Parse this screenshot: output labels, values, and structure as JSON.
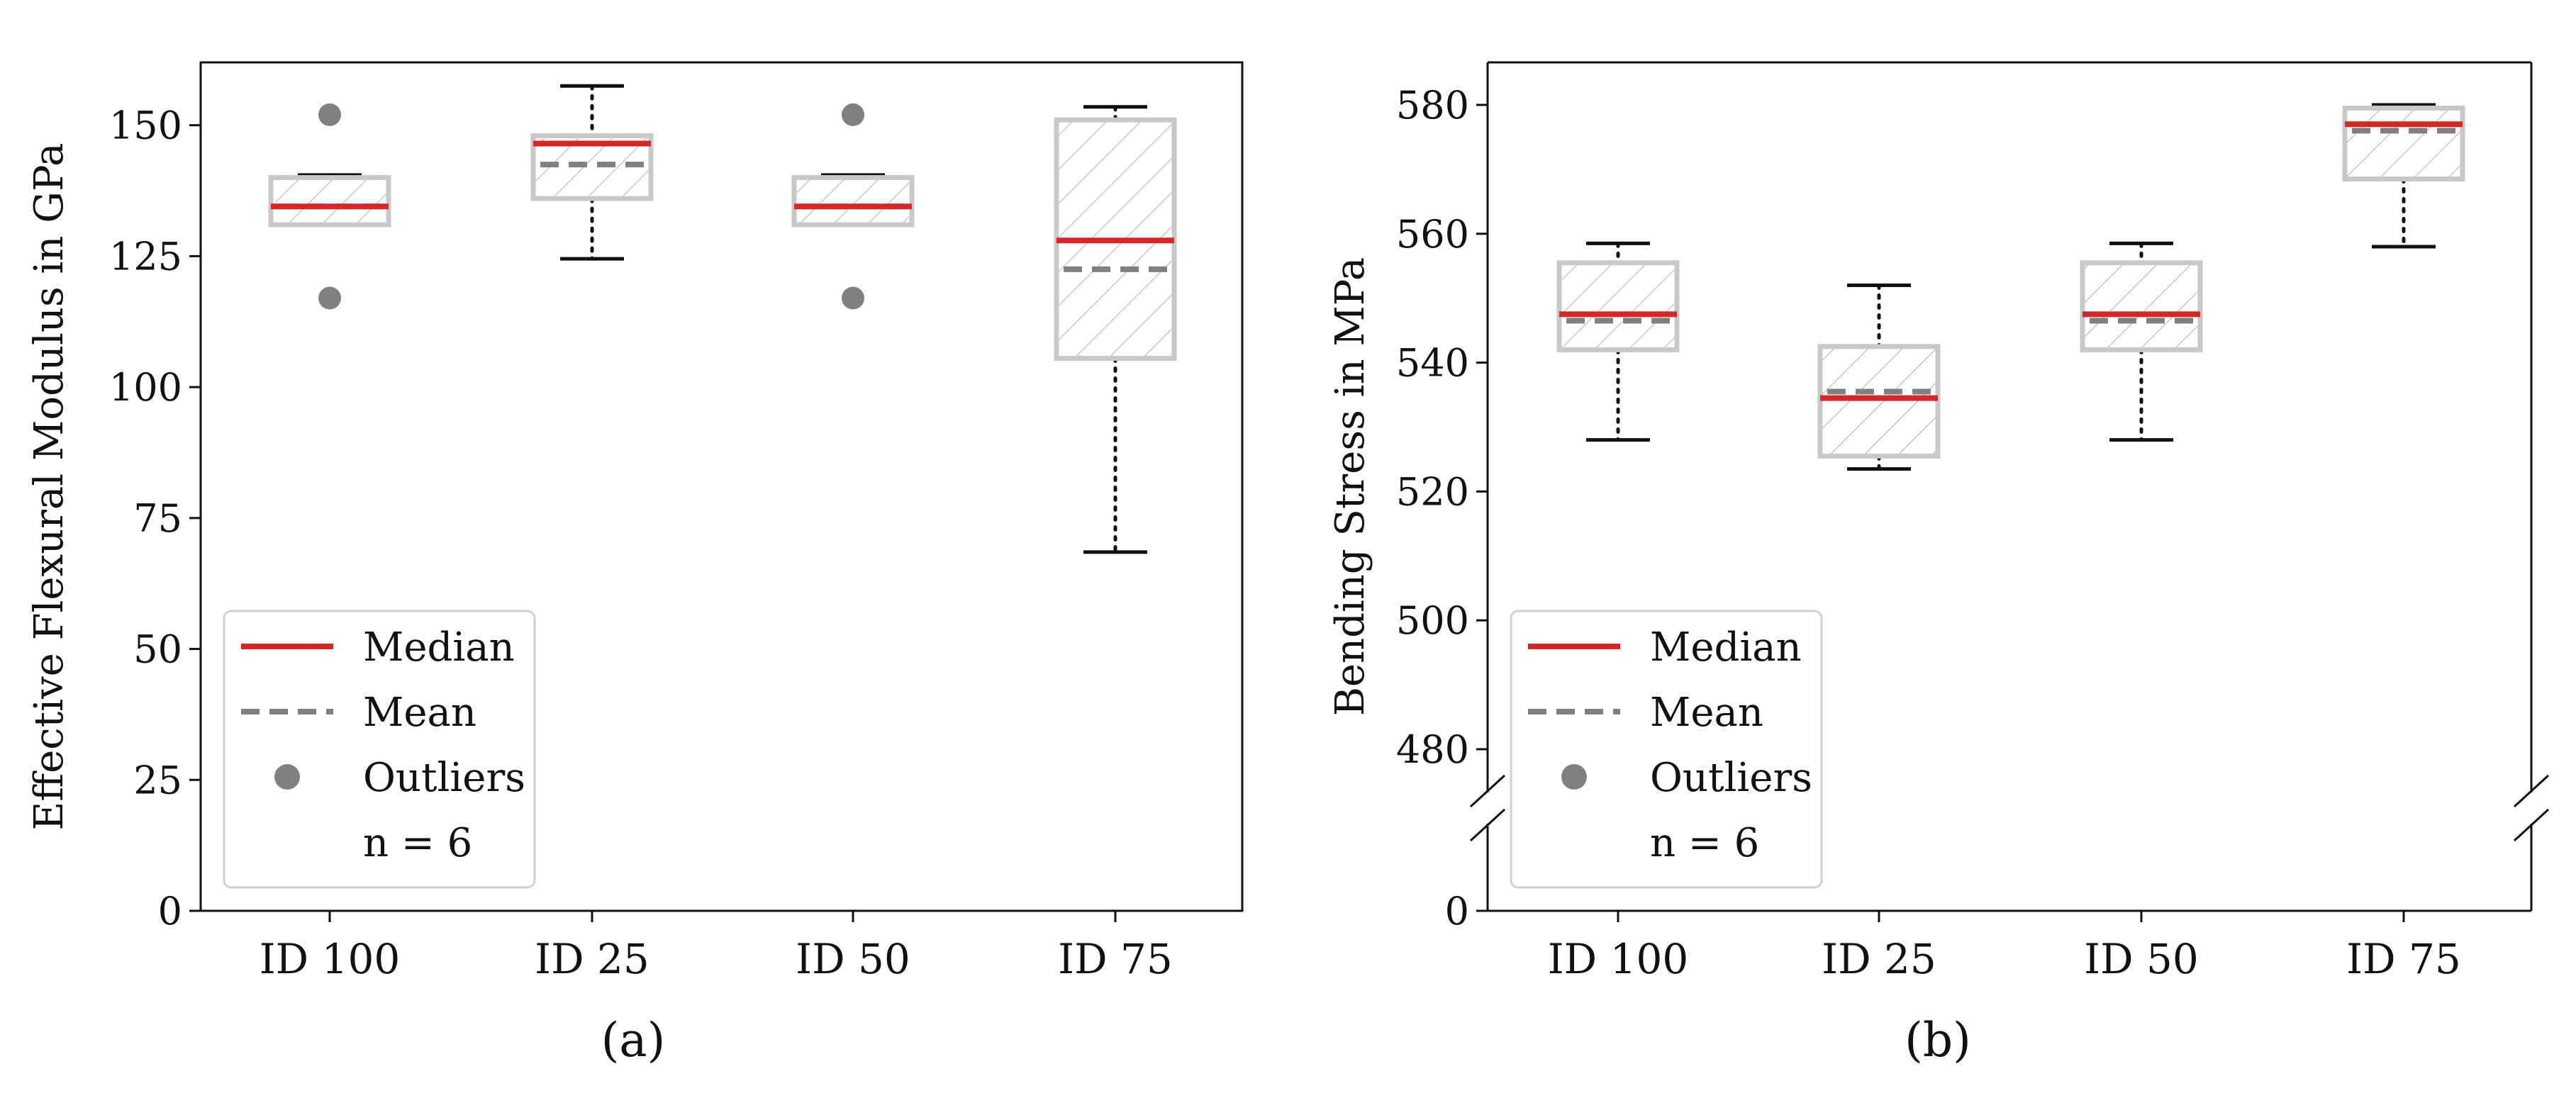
{
  "colors": {
    "median": "#d62728",
    "mean": "#808080",
    "box": "#c8c8c8",
    "hatch": "#c8c8c8",
    "outlier": "#808080",
    "whisker": "#111111",
    "axis": "#111111"
  },
  "chart_data": [
    {
      "type": "box",
      "panel_label": "(a)",
      "ylabel": "Effective Flexural Modulus in GPa",
      "ylim": [
        0,
        162
      ],
      "yticks": [
        0,
        25,
        50,
        75,
        100,
        125,
        150
      ],
      "categories": [
        "ID 100",
        "ID 25",
        "ID 50",
        "ID 75"
      ],
      "boxes": [
        {
          "label": "ID 100",
          "whisker_low": 131,
          "q1": 131,
          "median": 134.5,
          "mean": 134.5,
          "q3": 140,
          "whisker_high": 140.5,
          "outliers": [
            152,
            117
          ]
        },
        {
          "label": "ID 25",
          "whisker_low": 124.5,
          "q1": 136,
          "median": 146.5,
          "mean": 142.5,
          "q3": 148,
          "whisker_high": 157.5,
          "outliers": []
        },
        {
          "label": "ID 50",
          "whisker_low": 131,
          "q1": 131,
          "median": 134.5,
          "mean": 134.5,
          "q3": 140,
          "whisker_high": 140.5,
          "outliers": [
            152,
            117
          ]
        },
        {
          "label": "ID 75",
          "whisker_low": 68.5,
          "q1": 105.5,
          "median": 128,
          "mean": 122.5,
          "q3": 151,
          "whisker_high": 153.5,
          "outliers": []
        }
      ],
      "legend": {
        "position": "lower-left",
        "entries": [
          {
            "kind": "median",
            "label": "Median"
          },
          {
            "kind": "mean",
            "label": "Mean"
          },
          {
            "kind": "outlier",
            "label": "Outliers"
          },
          {
            "kind": "text",
            "label": "n = 6"
          }
        ]
      },
      "grid": false
    },
    {
      "type": "box",
      "panel_label": "(b)",
      "ylabel": "Bending Stress in MPa",
      "ylim": [
        0,
        586
      ],
      "axis_break": true,
      "yticks": [
        0,
        480,
        500,
        520,
        540,
        560,
        580
      ],
      "categories": [
        "ID 100",
        "ID 25",
        "ID 50",
        "ID 75"
      ],
      "boxes": [
        {
          "label": "ID 100",
          "whisker_low": 528,
          "q1": 542,
          "median": 547.5,
          "mean": 546.5,
          "q3": 555.5,
          "whisker_high": 558.5,
          "outliers": []
        },
        {
          "label": "ID 25",
          "whisker_low": 523.5,
          "q1": 525.5,
          "median": 534.5,
          "mean": 535.5,
          "q3": 542.5,
          "whisker_high": 552,
          "outliers": []
        },
        {
          "label": "ID 50",
          "whisker_low": 528,
          "q1": 542,
          "median": 547.5,
          "mean": 546.5,
          "q3": 555.5,
          "whisker_high": 558.5,
          "outliers": []
        },
        {
          "label": "ID 75",
          "whisker_low": 558,
          "q1": 568.5,
          "median": 577,
          "mean": 576,
          "q3": 579.5,
          "whisker_high": 580,
          "outliers": []
        }
      ],
      "legend": {
        "position": "lower-left",
        "entries": [
          {
            "kind": "median",
            "label": "Median"
          },
          {
            "kind": "mean",
            "label": "Mean"
          },
          {
            "kind": "outlier",
            "label": "Outliers"
          },
          {
            "kind": "text",
            "label": "n = 6"
          }
        ]
      },
      "grid": false
    }
  ]
}
